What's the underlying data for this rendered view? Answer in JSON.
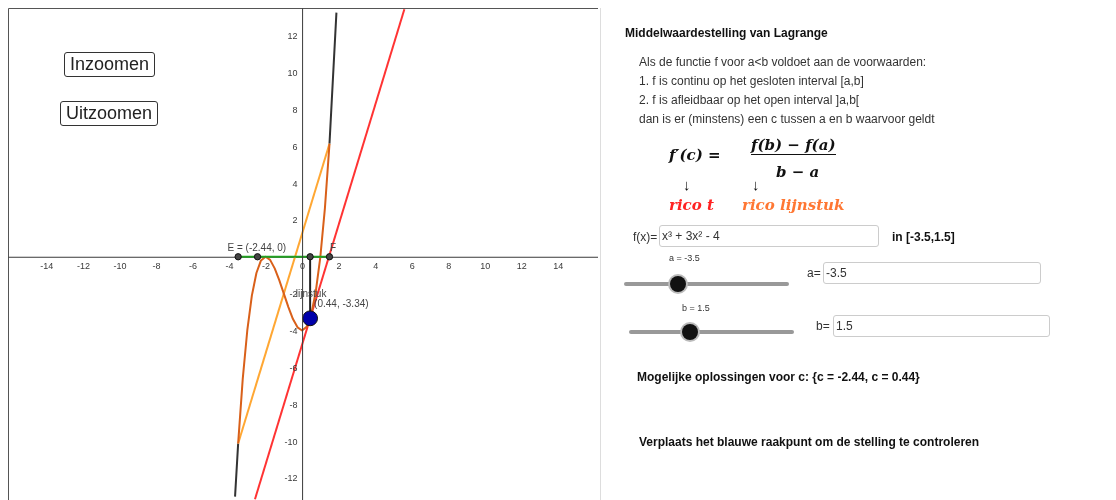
{
  "chart_data": [
    {
      "type": "line",
      "xlim": [
        -16.1,
        16.2
      ],
      "ylim": [
        -13.2,
        13.5
      ],
      "xticks": [
        -14,
        -12,
        -10,
        -8,
        -6,
        -4,
        -2,
        0,
        2,
        4,
        6,
        8,
        10,
        12,
        14
      ],
      "yticks": [
        -12,
        -10,
        -8,
        -6,
        -4,
        -2,
        2,
        4,
        6,
        8,
        10,
        12
      ],
      "grid": false,
      "series": [
        {
          "type": "line",
          "color": "#333333",
          "x": [
            -3.67,
            -3.5,
            0,
            1.5,
            1.88
          ],
          "values": [
            -13.02,
            -10.13,
            null,
            6.13,
            13.25
          ]
        },
        {
          "type": "line",
          "color": "#ffa733",
          "x": [
            -3.5,
            1.5
          ],
          "values": [
            -10.13,
            6.13
          ]
        },
        {
          "type": "line",
          "color": "#ff3333",
          "x": [
            -2.58,
            5.6
          ],
          "values": [
            -13.16,
            13.43
          ]
        },
        {
          "type": "line",
          "color": "#d9601a",
          "x": [
            -3.5,
            -3.25,
            -3,
            -2.75,
            -2.5,
            -2.25,
            -2,
            -1.75,
            -1.5,
            -1.25,
            -1,
            -0.75,
            -0.5,
            -0.25,
            0,
            0.25,
            0.5,
            0.75,
            1,
            1.25,
            1.5
          ],
          "values": [
            -10.13,
            -6.64,
            -4,
            -2.11,
            -0.88,
            -0.2,
            0,
            -0.17,
            -0.63,
            -1.27,
            -2,
            -2.73,
            -3.38,
            -3.83,
            -4,
            -3.8,
            -3.13,
            -1.89,
            0,
            2.64,
            6.13
          ]
        },
        {
          "type": "line",
          "color": "#22a022",
          "x": [
            -3.5,
            1.5
          ],
          "values": [
            0,
            0
          ]
        },
        {
          "type": "line",
          "color": "#222222",
          "x": [
            0.44,
            0.44
          ],
          "values": [
            0,
            -3.34
          ]
        },
        {
          "type": "scatter",
          "color": "#444444",
          "x": [
            -3.5,
            -2.44,
            0.44,
            1.5
          ],
          "values": [
            0,
            0,
            0,
            0
          ]
        },
        {
          "type": "bubble",
          "color": "#0000aa",
          "x": [
            0.44
          ],
          "values": [
            -3.34
          ],
          "sizes": [
            1
          ]
        }
      ],
      "annotations": [
        "Inzoomen",
        "Uitzoomen",
        {
          "text": "E = (-2.44, 0)",
          "x": -2.44,
          "y": 0
        },
        {
          "text": "F",
          "x": 0.44,
          "y": 0
        },
        {
          "text": "lijnstuk",
          "x": -1,
          "y": -2
        },
        {
          "text": "(0.44, -3.34)",
          "x": 0.44,
          "y": -3.34
        }
      ]
    },
    {
      "type": "other",
      "title": "Middelwaardestelling van Lagrange",
      "annotations": [
        "Als de functie f voor a<b voldoet aan de voorwaarden:",
        "1. f is continu op het gesloten interval [a,b]",
        "2. f is afleidbaar op het open interval ]a,b[",
        "dan is er (minstens) een c tussen a en b waarvoor geldt",
        "f′(c) =",
        "f(b) − f(a)",
        "b − a",
        "↓",
        "↓",
        "rico t",
        "rico lijnstuk",
        "f(x)=",
        "x³ + 3x² - 4",
        "in [-3.5,1.5]",
        "a = -3.5",
        "a=",
        "-3.5",
        "b = 1.5",
        "b=",
        "1.5",
        "Mogelijke oplossingen voor c: {c = -2.44, c = 0.44}",
        "Verplaats het blauwe raakpunt om de stelling te controleren"
      ]
    }
  ]
}
